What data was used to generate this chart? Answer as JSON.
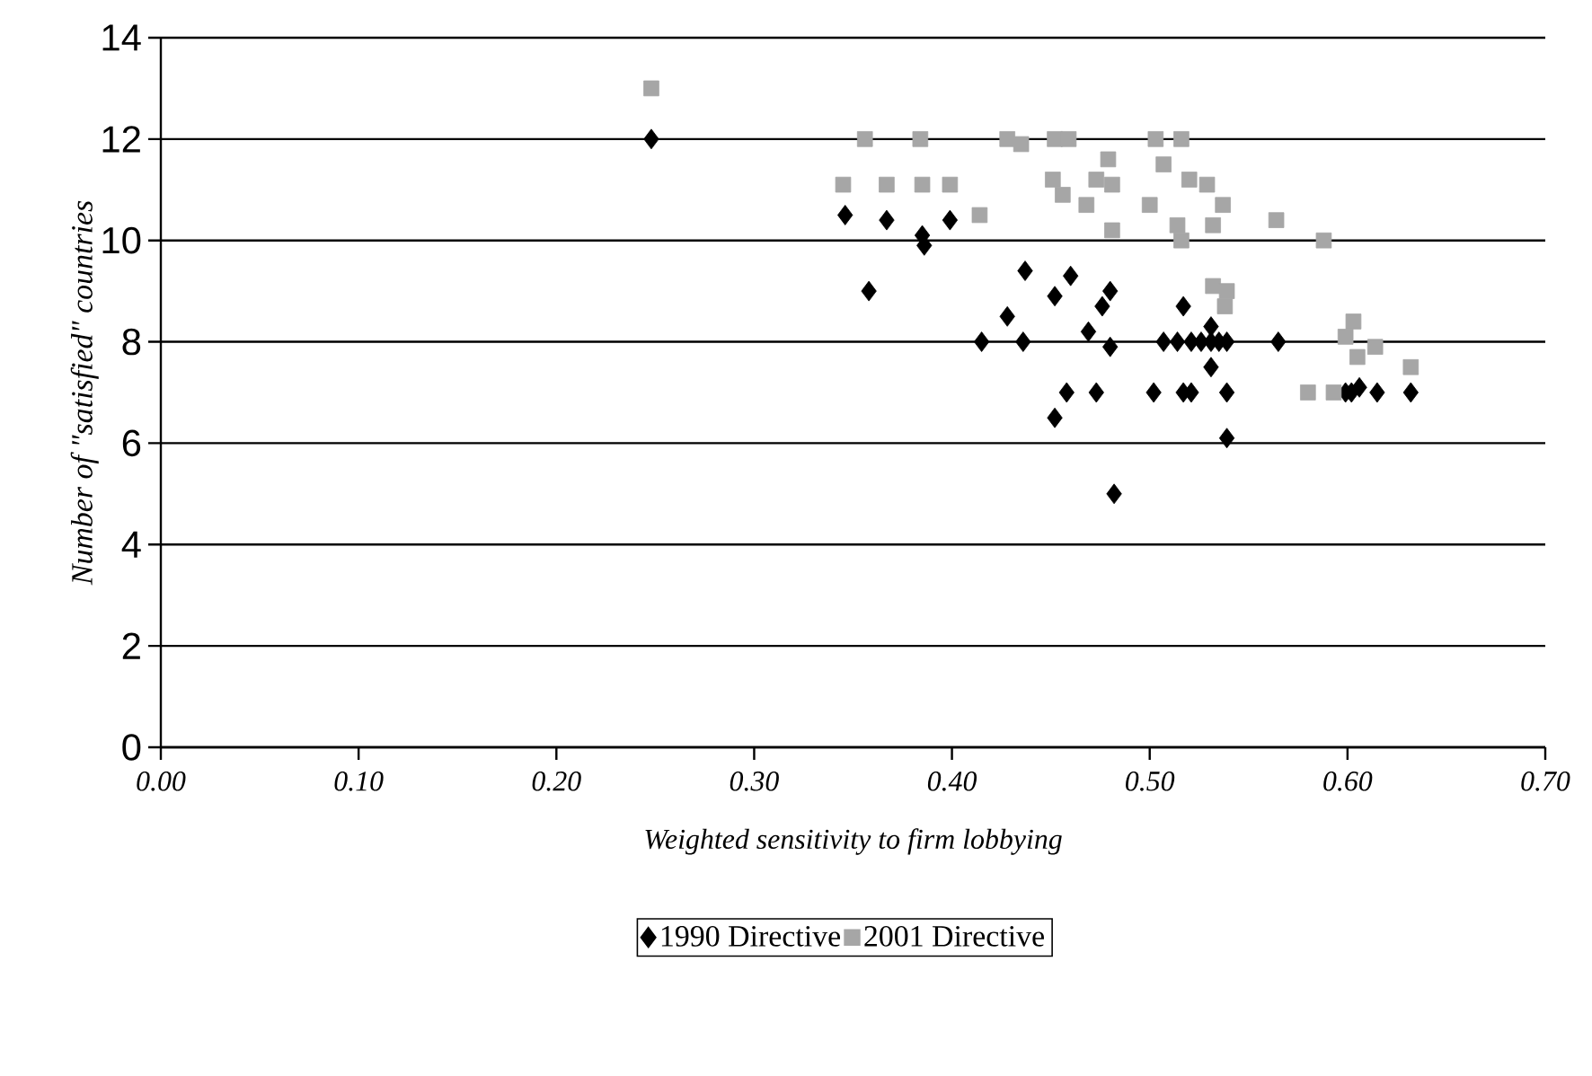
{
  "chart_data": {
    "type": "scatter",
    "xlabel": "Weighted sensitivity to firm lobbying",
    "ylabel": "Number of \"satisfied\" countries",
    "xlim": [
      0,
      0.7
    ],
    "ylim": [
      0,
      14
    ],
    "xticks": [
      {
        "value": 0,
        "label": "0.00"
      },
      {
        "value": 0.1,
        "label": "0.10"
      },
      {
        "value": 0.2,
        "label": "0.20"
      },
      {
        "value": 0.3,
        "label": "0.30"
      },
      {
        "value": 0.4,
        "label": "0.40"
      },
      {
        "value": 0.5,
        "label": "0.50"
      },
      {
        "value": 0.6,
        "label": "0.60"
      },
      {
        "value": 0.7,
        "label": "0.70"
      }
    ],
    "yticks": [
      0,
      2,
      4,
      6,
      8,
      10,
      12,
      14
    ],
    "grid": "y",
    "legend": "bottom",
    "series": [
      {
        "name": "1990 Directive",
        "color": "#000000",
        "marker": "diamond",
        "x": [
          0.248,
          0.346,
          0.358,
          0.367,
          0.385,
          0.386,
          0.399,
          0.415,
          0.428,
          0.436,
          0.437,
          0.452,
          0.452,
          0.458,
          0.46,
          0.469,
          0.473,
          0.476,
          0.48,
          0.48,
          0.482,
          0.502,
          0.507,
          0.514,
          0.517,
          0.517,
          0.521,
          0.521,
          0.526,
          0.531,
          0.531,
          0.531,
          0.535,
          0.539,
          0.539,
          0.539,
          0.565,
          0.582,
          0.591,
          0.599,
          0.602,
          0.606,
          0.615,
          0.632
        ],
        "values": [
          12.0,
          10.5,
          9.0,
          10.4,
          10.1,
          9.9,
          10.4,
          8.0,
          8.5,
          8.0,
          9.4,
          8.9,
          6.5,
          7.0,
          9.3,
          8.2,
          7.0,
          8.7,
          9.0,
          7.9,
          5.0,
          7.0,
          8.0,
          8.0,
          7.0,
          8.7,
          7.0,
          8.0,
          8.0,
          8.0,
          8.3,
          7.5,
          8.0,
          8.0,
          7.0,
          6.1,
          8.0,
          null,
          null,
          7.0,
          7.0,
          7.1,
          7.0,
          7.0
        ]
      },
      {
        "name": "2001 Directive",
        "color": "#a6a6a6",
        "marker": "square",
        "x": [
          0.248,
          0.345,
          0.356,
          0.367,
          0.384,
          0.385,
          0.399,
          0.414,
          0.428,
          0.435,
          0.451,
          0.452,
          0.456,
          0.459,
          0.468,
          0.473,
          0.479,
          0.481,
          0.481,
          0.5,
          0.503,
          0.507,
          0.514,
          0.516,
          0.516,
          0.52,
          0.529,
          0.532,
          0.532,
          0.537,
          0.538,
          0.539,
          0.564,
          0.58,
          0.588,
          0.593,
          0.599,
          0.603,
          0.605,
          0.614,
          0.632
        ],
        "values": [
          13.0,
          11.1,
          12.0,
          11.1,
          12.0,
          11.1,
          11.1,
          10.5,
          12.0,
          11.9,
          11.2,
          12.0,
          10.9,
          12.0,
          10.7,
          11.2,
          11.6,
          11.1,
          10.2,
          10.7,
          12.0,
          11.5,
          10.3,
          10.0,
          12.0,
          11.2,
          11.1,
          10.3,
          9.1,
          10.7,
          8.7,
          9.0,
          10.4,
          7.0,
          10.0,
          7.0,
          8.1,
          8.4,
          7.7,
          7.9,
          7.5
        ]
      }
    ]
  }
}
